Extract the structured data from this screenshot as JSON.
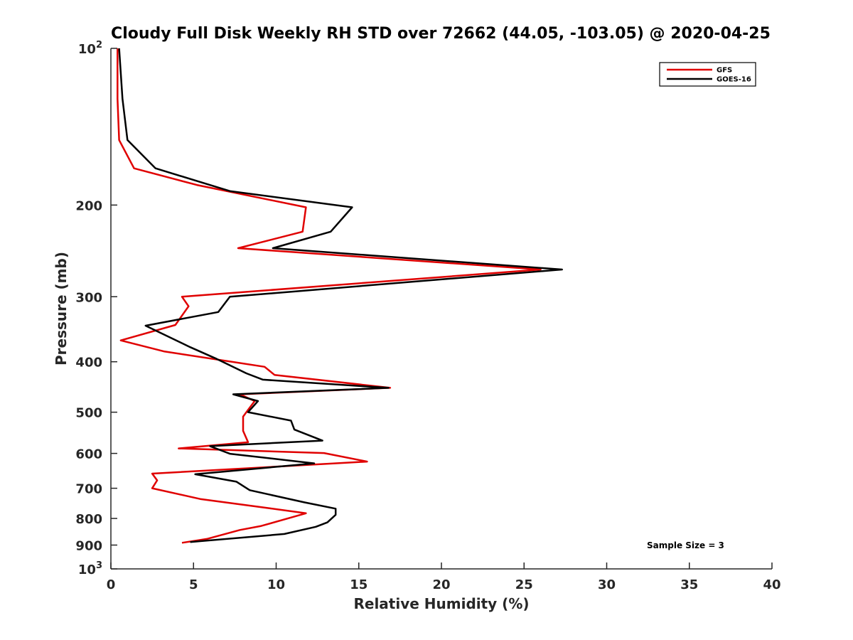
{
  "chart_data": {
    "type": "line",
    "title": "Cloudy Full Disk Weekly RH STD over 72662 (44.05, -103.05) @ 2020-04-25",
    "xlabel": "Relative Humidity (%)",
    "ylabel": "Pressure (mb)",
    "xlim": [
      0,
      40
    ],
    "ylim": [
      100,
      1000
    ],
    "y_scale": "log",
    "y_reversed": true,
    "grid": false,
    "legend_position": "top-right",
    "x_ticks": [
      0,
      5,
      10,
      15,
      20,
      25,
      30,
      35,
      40
    ],
    "x_tick_labels": [
      "0",
      "5",
      "10",
      "15",
      "20",
      "25",
      "30",
      "35",
      "40"
    ],
    "y_ticks": [
      {
        "value": 100,
        "base": "10",
        "exp": "2"
      },
      {
        "value": 200,
        "label": "200"
      },
      {
        "value": 300,
        "label": "300"
      },
      {
        "value": 400,
        "label": "400"
      },
      {
        "value": 500,
        "label": "500"
      },
      {
        "value": 600,
        "label": "600"
      },
      {
        "value": 700,
        "label": "700"
      },
      {
        "value": 800,
        "label": "800"
      },
      {
        "value": 900,
        "label": "900"
      },
      {
        "value": 1000,
        "base": "10",
        "exp": "3"
      }
    ],
    "series": [
      {
        "name": "GFS",
        "color": "#e00000",
        "points": [
          [
            0.4,
            100
          ],
          [
            0.4,
            125
          ],
          [
            0.5,
            150
          ],
          [
            1.4,
            170
          ],
          [
            5.2,
            183
          ],
          [
            11.8,
            202
          ],
          [
            11.6,
            225
          ],
          [
            7.7,
            242
          ],
          [
            26.0,
            266
          ],
          [
            4.3,
            300
          ],
          [
            4.7,
            313
          ],
          [
            3.9,
            340
          ],
          [
            0.6,
            364
          ],
          [
            3.2,
            382
          ],
          [
            9.3,
            409
          ],
          [
            9.9,
            424
          ],
          [
            16.9,
            449
          ],
          [
            7.8,
            462
          ],
          [
            8.7,
            476
          ],
          [
            8.4,
            490
          ],
          [
            8.0,
            510
          ],
          [
            8.0,
            543
          ],
          [
            8.3,
            571
          ],
          [
            4.1,
            587
          ],
          [
            12.9,
            599
          ],
          [
            15.5,
            622
          ],
          [
            2.5,
            656
          ],
          [
            2.8,
            676
          ],
          [
            2.5,
            700
          ],
          [
            5.4,
            734
          ],
          [
            9.6,
            765
          ],
          [
            11.8,
            782
          ],
          [
            9.1,
            827
          ],
          [
            7.8,
            842
          ],
          [
            5.8,
            876
          ],
          [
            4.3,
            891
          ]
        ]
      },
      {
        "name": "GOES-16",
        "color": "#000000",
        "points": [
          [
            0.5,
            100
          ],
          [
            0.7,
            125
          ],
          [
            1.0,
            150
          ],
          [
            2.7,
            170
          ],
          [
            7.2,
            188
          ],
          [
            14.6,
            202
          ],
          [
            13.3,
            225
          ],
          [
            9.8,
            242
          ],
          [
            27.3,
            266
          ],
          [
            7.2,
            300
          ],
          [
            6.5,
            321
          ],
          [
            2.1,
            341
          ],
          [
            4.8,
            375
          ],
          [
            6.4,
            395
          ],
          [
            8.2,
            421
          ],
          [
            9.2,
            433
          ],
          [
            16.8,
            449
          ],
          [
            7.4,
            462
          ],
          [
            8.9,
            476
          ],
          [
            8.3,
            500
          ],
          [
            10.9,
            519
          ],
          [
            11.1,
            540
          ],
          [
            12.8,
            567
          ],
          [
            6.0,
            581
          ],
          [
            7.2,
            601
          ],
          [
            12.3,
            627
          ],
          [
            5.1,
            658
          ],
          [
            7.6,
            680
          ],
          [
            8.4,
            706
          ],
          [
            11.7,
            745
          ],
          [
            13.6,
            766
          ],
          [
            13.6,
            787
          ],
          [
            13.1,
            814
          ],
          [
            12.4,
            830
          ],
          [
            10.5,
            857
          ],
          [
            4.8,
            888
          ]
        ]
      }
    ],
    "annotations": [
      "Sample Size = 3"
    ]
  }
}
